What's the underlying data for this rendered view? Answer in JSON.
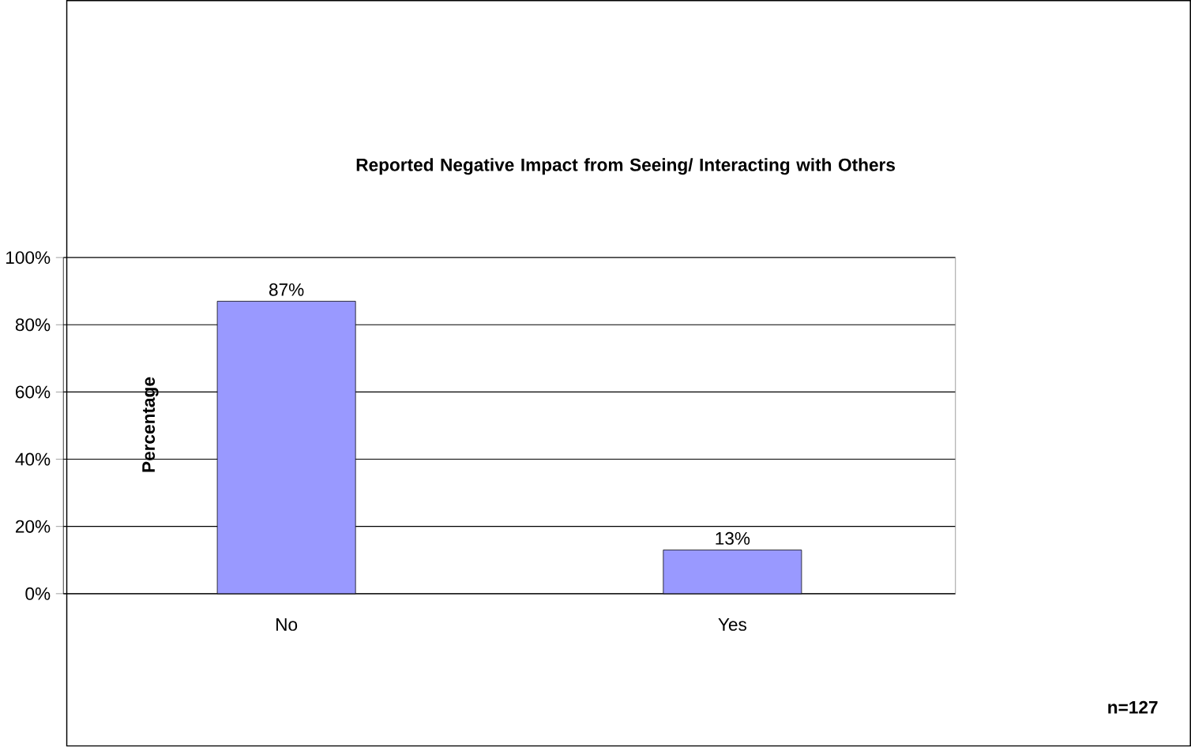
{
  "chart_data": {
    "type": "bar",
    "title": "Reported Negative Impact from Seeing/ Interacting with Others",
    "ylabel": "Percentage",
    "categories": [
      "No",
      "Yes"
    ],
    "values": [
      87,
      13
    ],
    "value_labels": [
      "87%",
      "13%"
    ],
    "color": "#9999ff",
    "ylim": [
      0,
      100
    ],
    "yticks": [
      {
        "value": 0,
        "label": "0%"
      },
      {
        "value": 20,
        "label": "20%"
      },
      {
        "value": 40,
        "label": "40%"
      },
      {
        "value": 60,
        "label": "60%"
      },
      {
        "value": 80,
        "label": "80%"
      },
      {
        "value": 100,
        "label": "100%"
      }
    ],
    "grid": "y",
    "annotations": [
      "n=127"
    ]
  }
}
